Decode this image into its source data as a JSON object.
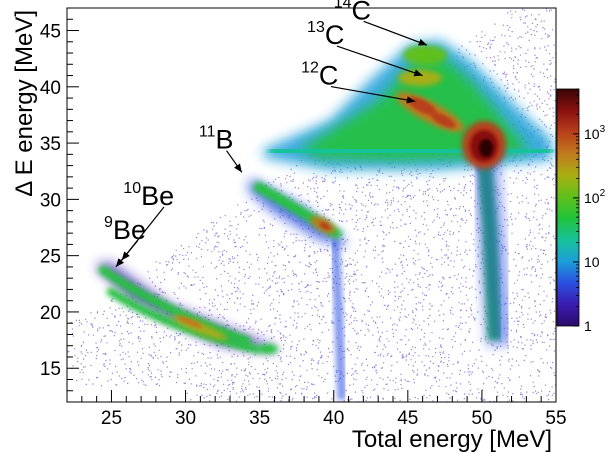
{
  "chart_data": {
    "type": "heatmap",
    "title": "",
    "xlabel": "Total energy [MeV]",
    "ylabel": "Δ E energy [MeV]",
    "xlim": [
      22,
      55
    ],
    "ylim": [
      12,
      47
    ],
    "x_ticks": [
      "25",
      "30",
      "35",
      "40",
      "45",
      "50",
      "55"
    ],
    "y_ticks": [
      "15",
      "20",
      "25",
      "30",
      "35",
      "40",
      "45"
    ],
    "colorbar": {
      "scale": "log",
      "range": [
        1,
        5000
      ],
      "tick_labels": [
        {
          "label": "1",
          "value": 1
        },
        {
          "label": "10",
          "value": 10
        },
        {
          "label": "10",
          "sup": "2",
          "value": 100
        },
        {
          "label": "10",
          "sup": "3",
          "value": 1000
        }
      ],
      "palette": [
        "#2b0b68",
        "#3a1cb0",
        "#2a4fe0",
        "#1c9ed8",
        "#17c29a",
        "#20c33a",
        "#5fc01a",
        "#a9ae12",
        "#c07a1e",
        "#b8401a",
        "#8a1010",
        "#3a0505"
      ]
    },
    "annotations": [
      {
        "mass": "9",
        "element": "Be",
        "x": 24.5,
        "y": 26.5,
        "arrow_to": [
          25.3,
          24.0
        ]
      },
      {
        "mass": "10",
        "element": "Be",
        "x": 25.8,
        "y": 29.5,
        "arrow_to": [
          25.7,
          24.6
        ]
      },
      {
        "mass": "11",
        "element": "B",
        "x": 30.9,
        "y": 34.5,
        "arrow_to": [
          33.8,
          32.4
        ]
      },
      {
        "mass": "12",
        "element": "C",
        "x": 37.8,
        "y": 40.2,
        "arrow_to": [
          45.5,
          38.7
        ]
      },
      {
        "mass": "13",
        "element": "C",
        "x": 38.2,
        "y": 43.8,
        "arrow_to": [
          46.0,
          41.0
        ]
      },
      {
        "mass": "14",
        "element": "C",
        "x": 40.0,
        "y": 46.0,
        "arrow_to": [
          46.3,
          43.7
        ]
      }
    ],
    "hotspots": [
      {
        "x": 50.5,
        "y": 34.5,
        "intensity": 5000
      },
      {
        "x": 46.5,
        "y": 38.5,
        "intensity": 700
      },
      {
        "x": 48.5,
        "y": 37.0,
        "intensity": 500
      },
      {
        "x": 39.5,
        "y": 27.0,
        "intensity": 300
      },
      {
        "x": 30.0,
        "y": 18.5,
        "intensity": 200
      },
      {
        "x": 35.5,
        "y": 16.5,
        "intensity": 150
      }
    ],
    "grid": false
  }
}
